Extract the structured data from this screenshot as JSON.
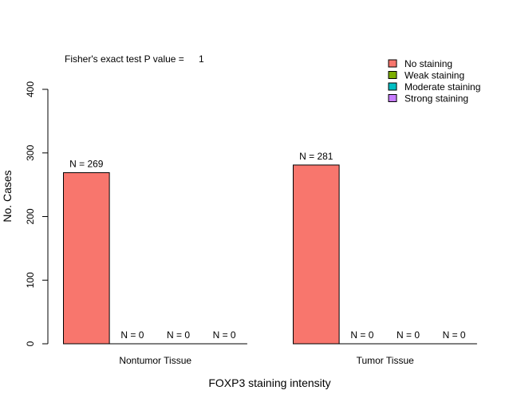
{
  "chart_data": {
    "type": "bar",
    "annotation": {
      "label": "Fisher's exact test P value =",
      "value": "1"
    },
    "xlabel": "FOXP3 staining intensity",
    "ylabel": "No. Cases",
    "ylim": [
      0,
      400
    ],
    "yticks": [
      0,
      100,
      200,
      300,
      400
    ],
    "groups": [
      "Nontumor Tissue",
      "Tumor Tissue"
    ],
    "series": [
      {
        "name": "No staining",
        "color": "#F8766D",
        "values": [
          269,
          281
        ]
      },
      {
        "name": "Weak staining",
        "color": "#7CAE00",
        "values": [
          0,
          0
        ]
      },
      {
        "name": "Moderate staining",
        "color": "#00BFC4",
        "values": [
          0,
          0
        ]
      },
      {
        "name": "Strong staining",
        "color": "#C77CFF",
        "values": [
          0,
          0
        ]
      }
    ],
    "bar_labels": [
      [
        "N = 269",
        "N = 0",
        "N = 0",
        "N = 0"
      ],
      [
        "N = 281",
        "N = 0",
        "N = 0",
        "N = 0"
      ]
    ],
    "legend_position": "top-right",
    "grid": false
  }
}
